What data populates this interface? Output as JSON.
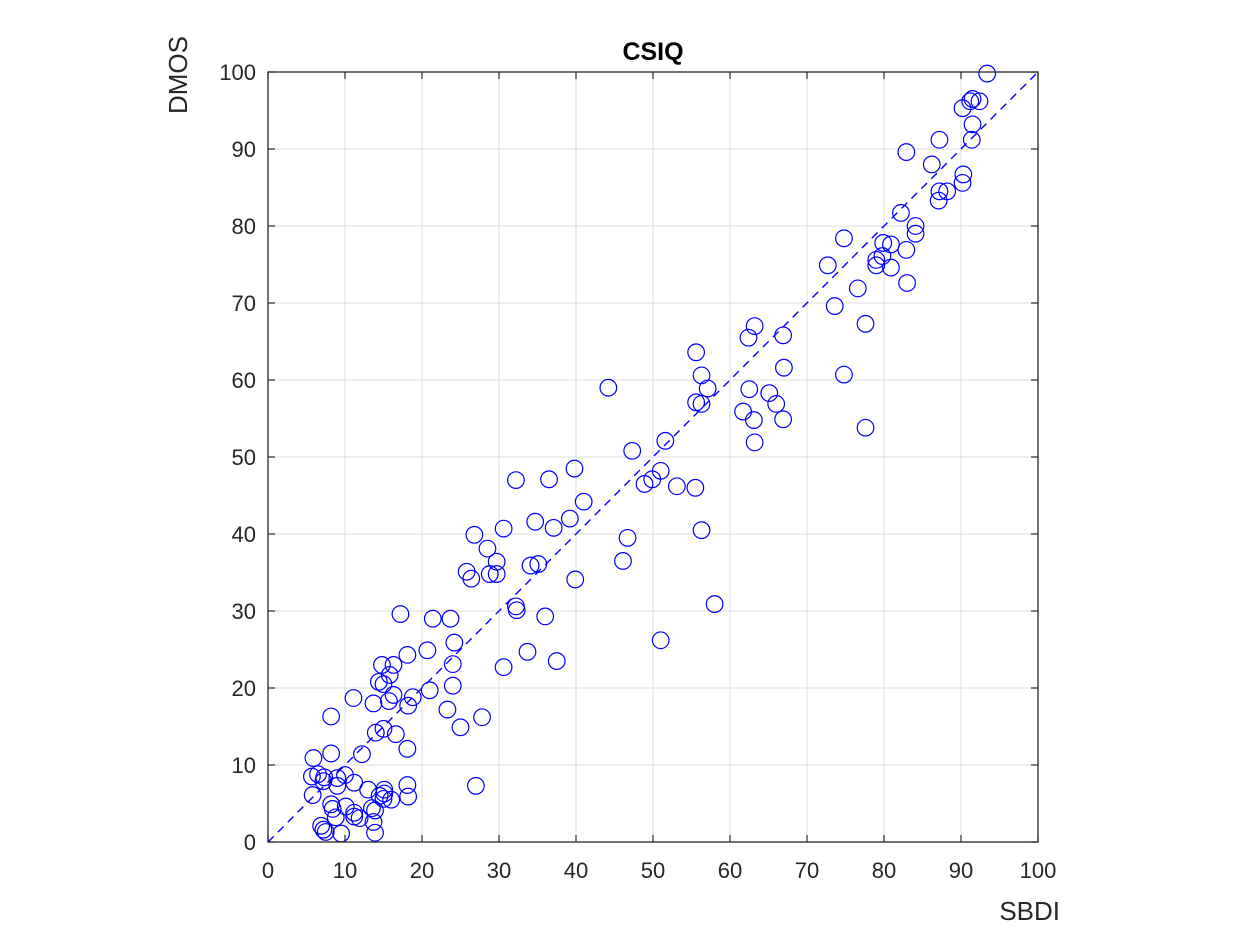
{
  "chart_data": {
    "type": "scatter",
    "title": "CSIQ",
    "xlabel": "SBDI",
    "ylabel": "DMOS",
    "xlim": [
      0,
      100
    ],
    "ylim": [
      0,
      100
    ],
    "xticks": [
      "0",
      "10",
      "20",
      "30",
      "40",
      "50",
      "60",
      "70",
      "80",
      "90",
      "100"
    ],
    "yticks": [
      "0",
      "10",
      "20",
      "30",
      "40",
      "50",
      "60",
      "70",
      "80",
      "90",
      "100"
    ],
    "grid": true,
    "marker": "open-circle",
    "marker_color": "#0000ff",
    "reference_line": {
      "style": "dashed",
      "from": [
        0,
        0
      ],
      "to": [
        100,
        100
      ],
      "color": "#0000ff"
    },
    "points": [
      [
        93.4,
        99.8
      ],
      [
        92.4,
        96.2
      ],
      [
        91.5,
        96.5
      ],
      [
        91.2,
        96.2
      ],
      [
        90.2,
        95.3
      ],
      [
        91.5,
        93.2
      ],
      [
        91.4,
        91.2
      ],
      [
        87.2,
        91.2
      ],
      [
        82.9,
        89.6
      ],
      [
        86.2,
        88
      ],
      [
        90.3,
        86.7
      ],
      [
        90.2,
        85.6
      ],
      [
        88.2,
        84.5
      ],
      [
        87.2,
        84.5
      ],
      [
        87.1,
        83.3
      ],
      [
        82.2,
        81.7
      ],
      [
        84.1,
        80
      ],
      [
        84.1,
        79
      ],
      [
        74.8,
        78.4
      ],
      [
        79.9,
        77.8
      ],
      [
        80.9,
        77.6
      ],
      [
        82.9,
        76.9
      ],
      [
        79.8,
        76.1
      ],
      [
        79,
        75.6
      ],
      [
        72.7,
        74.9
      ],
      [
        79,
        74.9
      ],
      [
        80.9,
        74.6
      ],
      [
        83,
        72.6
      ],
      [
        76.6,
        71.9
      ],
      [
        73.6,
        69.6
      ],
      [
        77.6,
        67.3
      ],
      [
        63.2,
        67
      ],
      [
        62.4,
        65.5
      ],
      [
        66.9,
        65.8
      ],
      [
        55.6,
        63.6
      ],
      [
        56.3,
        60.6
      ],
      [
        67,
        61.6
      ],
      [
        74.8,
        60.7
      ],
      [
        44.2,
        59
      ],
      [
        62.5,
        58.8
      ],
      [
        57.1,
        58.9
      ],
      [
        65.1,
        58.3
      ],
      [
        55.6,
        57.1
      ],
      [
        56.3,
        56.9
      ],
      [
        66,
        56.9
      ],
      [
        61.7,
        55.9
      ],
      [
        63.1,
        54.8
      ],
      [
        66.9,
        54.9
      ],
      [
        77.6,
        53.8
      ],
      [
        63.2,
        51.9
      ],
      [
        51.6,
        52.1
      ],
      [
        47.3,
        50.8
      ],
      [
        39.8,
        48.5
      ],
      [
        51,
        48.2
      ],
      [
        49.9,
        47.1
      ],
      [
        48.9,
        46.5
      ],
      [
        53.1,
        46.2
      ],
      [
        55.5,
        46
      ],
      [
        32.2,
        47
      ],
      [
        36.5,
        47.1
      ],
      [
        41,
        44.2
      ],
      [
        34.7,
        41.6
      ],
      [
        39.2,
        42
      ],
      [
        30.6,
        40.7
      ],
      [
        26.8,
        39.9
      ],
      [
        37.1,
        40.8
      ],
      [
        56.3,
        40.5
      ],
      [
        46.7,
        39.5
      ],
      [
        28.5,
        38.1
      ],
      [
        29.7,
        36.4
      ],
      [
        34.1,
        35.9
      ],
      [
        35.1,
        36.1
      ],
      [
        46.1,
        36.5
      ],
      [
        25.8,
        35.1
      ],
      [
        29.7,
        34.8
      ],
      [
        28.8,
        34.8
      ],
      [
        26.4,
        34.2
      ],
      [
        39.9,
        34.1
      ],
      [
        32.2,
        30.6
      ],
      [
        32.3,
        30.1
      ],
      [
        58,
        30.9
      ],
      [
        36,
        29.3
      ],
      [
        17.2,
        29.6
      ],
      [
        21.4,
        29
      ],
      [
        23.7,
        29
      ],
      [
        51,
        26.2
      ],
      [
        24.2,
        25.9
      ],
      [
        20.7,
        24.9
      ],
      [
        33.7,
        24.7
      ],
      [
        18.1,
        24.3
      ],
      [
        37.5,
        23.5
      ],
      [
        14.8,
        23
      ],
      [
        16.3,
        23
      ],
      [
        24,
        23.1
      ],
      [
        30.6,
        22.7
      ],
      [
        15.8,
        21.7
      ],
      [
        14.4,
        20.8
      ],
      [
        15,
        20.5
      ],
      [
        24,
        20.3
      ],
      [
        21,
        19.7
      ],
      [
        16.3,
        19.1
      ],
      [
        11.1,
        18.7
      ],
      [
        18.8,
        18.8
      ],
      [
        13.7,
        18
      ],
      [
        15.7,
        18.3
      ],
      [
        18.2,
        17.7
      ],
      [
        23.3,
        17.2
      ],
      [
        8.2,
        16.3
      ],
      [
        27.8,
        16.2
      ],
      [
        15,
        14.7
      ],
      [
        25,
        14.9
      ],
      [
        14,
        14.2
      ],
      [
        16.6,
        14
      ],
      [
        18.1,
        12.1
      ],
      [
        8.2,
        11.5
      ],
      [
        12.2,
        11.4
      ],
      [
        5.9,
        10.9
      ],
      [
        10,
        8.7
      ],
      [
        7.3,
        8.4
      ],
      [
        5.7,
        8.5
      ],
      [
        6.5,
        8.8
      ],
      [
        9,
        8.3
      ],
      [
        11.2,
        7.7
      ],
      [
        7.2,
        7.9
      ],
      [
        27,
        7.3
      ],
      [
        18.1,
        7.4
      ],
      [
        9,
        7.3
      ],
      [
        13,
        6.8
      ],
      [
        15.1,
        6.8
      ],
      [
        15.1,
        6.3
      ],
      [
        5.8,
        6.1
      ],
      [
        14.5,
        6
      ],
      [
        18.2,
        5.9
      ],
      [
        16,
        5.5
      ],
      [
        15,
        5.6
      ],
      [
        8.2,
        4.9
      ],
      [
        10.1,
        4.6
      ],
      [
        13.5,
        4.4
      ],
      [
        8.4,
        4.3
      ],
      [
        13.9,
        4.1
      ],
      [
        11.2,
        3.8
      ],
      [
        11.2,
        3.3
      ],
      [
        8.8,
        3.2
      ],
      [
        11.9,
        3.1
      ],
      [
        13.7,
        2.6
      ],
      [
        6.9,
        2.1
      ],
      [
        7.2,
        1.6
      ],
      [
        7.5,
        1.3
      ],
      [
        9.5,
        1.1
      ],
      [
        13.9,
        1.2
      ]
    ]
  }
}
